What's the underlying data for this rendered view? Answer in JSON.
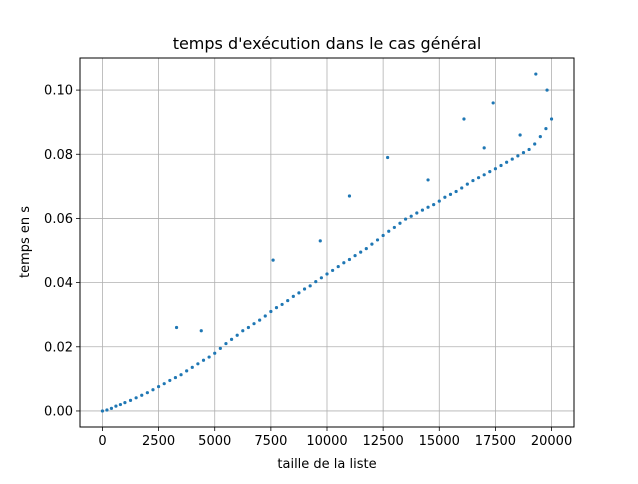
{
  "chart_data": {
    "type": "scatter",
    "title": "temps d'exécution dans le cas général",
    "xlabel": "taille de la liste",
    "ylabel": "temps en s",
    "xlim": [
      -1000,
      21000
    ],
    "ylim": [
      -0.005,
      0.11
    ],
    "xticks": [
      0,
      2500,
      5000,
      7500,
      10000,
      12500,
      15000,
      17500,
      20000
    ],
    "yticks": [
      0.0,
      0.02,
      0.04,
      0.06,
      0.08,
      0.1
    ],
    "ytick_labels": [
      "0.00",
      "0.02",
      "0.04",
      "0.06",
      "0.08",
      "0.10"
    ],
    "grid": true,
    "series": [
      {
        "color": "#1f77b4",
        "x": [
          0,
          200,
          400,
          600,
          800,
          1000,
          1250,
          1500,
          1750,
          2000,
          2250,
          2500,
          2750,
          3000,
          3250,
          3300,
          3500,
          3750,
          4000,
          4250,
          4500,
          4750,
          5000,
          5250,
          5500,
          5750,
          6000,
          6250,
          6500,
          6750,
          7000,
          7250,
          7500,
          7750,
          8000,
          8250,
          8500,
          8750,
          9000,
          9250,
          9500,
          9750,
          10000,
          10250,
          10500,
          10750,
          11000,
          11250,
          11500,
          11750,
          12000,
          12250,
          12500,
          12750,
          13000,
          13250,
          13500,
          13750,
          14000,
          14250,
          14500,
          14750,
          15000,
          15250,
          15500,
          15750,
          16000,
          16250,
          16500,
          16750,
          17000,
          17250,
          17500,
          17750,
          18000,
          18250,
          18500,
          18750,
          19000,
          19250,
          19500,
          19750,
          20000,
          4400,
          7600,
          9700,
          11000,
          12700,
          14500,
          16100,
          17000,
          17400,
          18600,
          19300,
          19800
        ],
        "y": [
          0.0,
          0.0003,
          0.0008,
          0.0015,
          0.002,
          0.0026,
          0.0033,
          0.0041,
          0.0049,
          0.0057,
          0.0066,
          0.0076,
          0.0085,
          0.0095,
          0.0104,
          0.026,
          0.0113,
          0.0125,
          0.0136,
          0.0147,
          0.0158,
          0.0168,
          0.018,
          0.0195,
          0.021,
          0.0223,
          0.0236,
          0.025,
          0.026,
          0.0272,
          0.0283,
          0.0296,
          0.031,
          0.0322,
          0.0332,
          0.0344,
          0.0357,
          0.0368,
          0.038,
          0.039,
          0.0403,
          0.0415,
          0.0427,
          0.0438,
          0.045,
          0.0462,
          0.0472,
          0.0484,
          0.0495,
          0.0506,
          0.052,
          0.0533,
          0.0547,
          0.056,
          0.0572,
          0.0585,
          0.0598,
          0.0607,
          0.0617,
          0.0626,
          0.0635,
          0.0643,
          0.0654,
          0.0666,
          0.0675,
          0.0684,
          0.0695,
          0.0707,
          0.0718,
          0.0727,
          0.0736,
          0.0746,
          0.0755,
          0.0765,
          0.0775,
          0.0785,
          0.0795,
          0.0805,
          0.0815,
          0.0832,
          0.0855,
          0.088,
          0.091,
          0.025,
          0.047,
          0.053,
          0.067,
          0.079,
          0.072,
          0.091,
          0.082,
          0.096,
          0.086,
          0.105,
          0.1
        ]
      }
    ]
  }
}
